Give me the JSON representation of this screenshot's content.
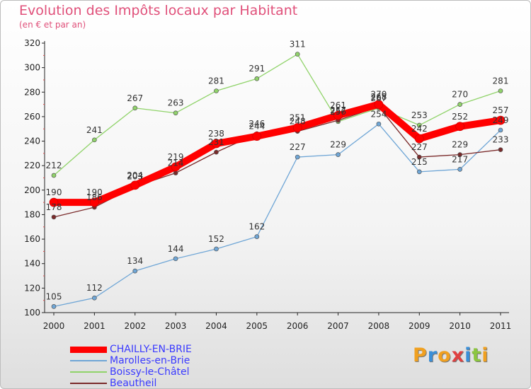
{
  "chart_data": {
    "type": "line",
    "title": "Evolution des Impôts locaux par Habitant",
    "subtitle": "(en € et par an)",
    "categories": [
      "2000",
      "2001",
      "2002",
      "2003",
      "2004",
      "2005",
      "2006",
      "2007",
      "2008",
      "2009",
      "2010",
      "2011"
    ],
    "y_ticks": [
      100,
      120,
      140,
      160,
      180,
      200,
      220,
      240,
      260,
      280,
      300,
      320
    ],
    "ylim": [
      100,
      320
    ],
    "grid": false,
    "legend_position": "bottom-left",
    "series": [
      {
        "name": "CHAILLY-EN-BRIE",
        "color": "#ff0000",
        "values": [
          190,
          190,
          204,
          219,
          238,
          244,
          251,
          261,
          270,
          242,
          252,
          257
        ]
      },
      {
        "name": "Marolles-en-Brie",
        "color": "#6fa6d6",
        "values": [
          105,
          112,
          134,
          144,
          152,
          162,
          227,
          229,
          254,
          215,
          217,
          249
        ]
      },
      {
        "name": "Boissy-le-Châtel",
        "color": "#90d36a",
        "values": [
          212,
          241,
          267,
          263,
          281,
          291,
          311,
          256,
          267,
          253,
          270,
          281
        ]
      },
      {
        "name": "Beautheil",
        "color": "#7a2a2a",
        "values": [
          178,
          186,
          203,
          214,
          231,
          246,
          248,
          257,
          268,
          227,
          229,
          233
        ]
      }
    ]
  },
  "logo": {
    "text": "Proxiti",
    "letters": [
      {
        "ch": "P",
        "color": "#f0a020"
      },
      {
        "ch": "r",
        "color": "#3a8fd8"
      },
      {
        "ch": "o",
        "color": "#f0a020"
      },
      {
        "ch": "x",
        "color": "#e04040"
      },
      {
        "ch": "i",
        "color": "#3a8fd8"
      },
      {
        "ch": "t",
        "color": "#8cc63f"
      },
      {
        "ch": "i",
        "color": "#f0a020"
      }
    ]
  }
}
